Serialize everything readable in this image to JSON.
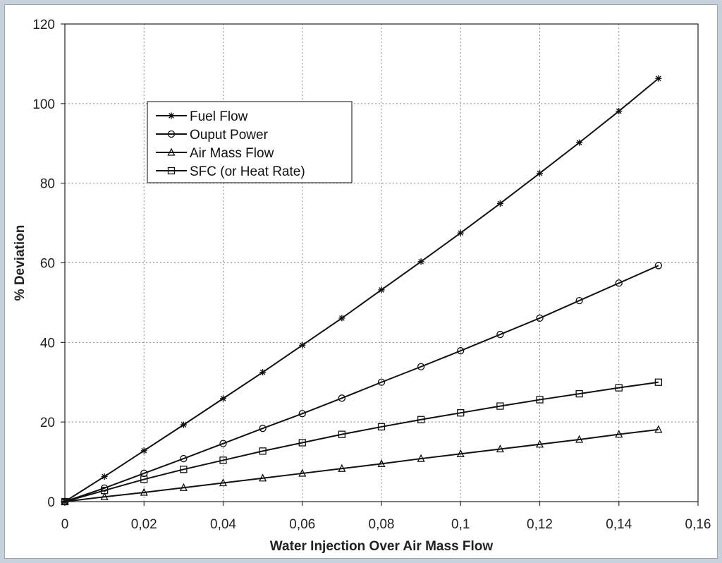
{
  "chart_data": {
    "type": "line",
    "title": "",
    "xlabel": "Water Injection Over Air Mass Flow",
    "ylabel": "% Deviation",
    "xlim": [
      0,
      0.16
    ],
    "ylim": [
      0,
      120
    ],
    "x_ticks": [
      0,
      0.02,
      0.04,
      0.06,
      0.08,
      0.1,
      0.12,
      0.14,
      0.16
    ],
    "x_tick_labels": [
      "0",
      "0,02",
      "0,04",
      "0,06",
      "0,08",
      "0,1",
      "0,12",
      "0,14",
      "0,16"
    ],
    "y_ticks": [
      0,
      20,
      40,
      60,
      80,
      100,
      120
    ],
    "y_tick_labels": [
      "0",
      "20",
      "40",
      "60",
      "80",
      "100",
      "120"
    ],
    "grid": true,
    "legend_position": "upper-left inside plot",
    "x": [
      0,
      0.01,
      0.02,
      0.03,
      0.04,
      0.05,
      0.06,
      0.07,
      0.08,
      0.09,
      0.1,
      0.11,
      0.12,
      0.13,
      0.14,
      0.15
    ],
    "series": [
      {
        "name": "Fuel Flow",
        "marker": "asterisk",
        "values": [
          0,
          6.3,
          12.8,
          19.3,
          25.9,
          32.5,
          39.3,
          46.1,
          53.2,
          60.3,
          67.5,
          74.9,
          82.5,
          90.2,
          98.1,
          106.3
        ]
      },
      {
        "name": "Ouput Power",
        "marker": "circle",
        "values": [
          0,
          3.4,
          7.1,
          10.8,
          14.6,
          18.4,
          22.1,
          26.0,
          30.0,
          33.9,
          37.9,
          42.0,
          46.1,
          50.5,
          54.9,
          59.3
        ]
      },
      {
        "name": "Air Mass Flow",
        "marker": "triangle",
        "values": [
          0,
          1.2,
          2.3,
          3.5,
          4.7,
          5.9,
          7.1,
          8.3,
          9.5,
          10.8,
          12.0,
          13.2,
          14.4,
          15.6,
          16.9,
          18.1
        ]
      },
      {
        "name": "SFC (or Heat Rate)",
        "marker": "square",
        "values": [
          0,
          2.8,
          5.6,
          8.1,
          10.4,
          12.7,
          14.8,
          16.9,
          18.8,
          20.6,
          22.3,
          24.0,
          25.6,
          27.1,
          28.6,
          30.0
        ]
      }
    ]
  }
}
